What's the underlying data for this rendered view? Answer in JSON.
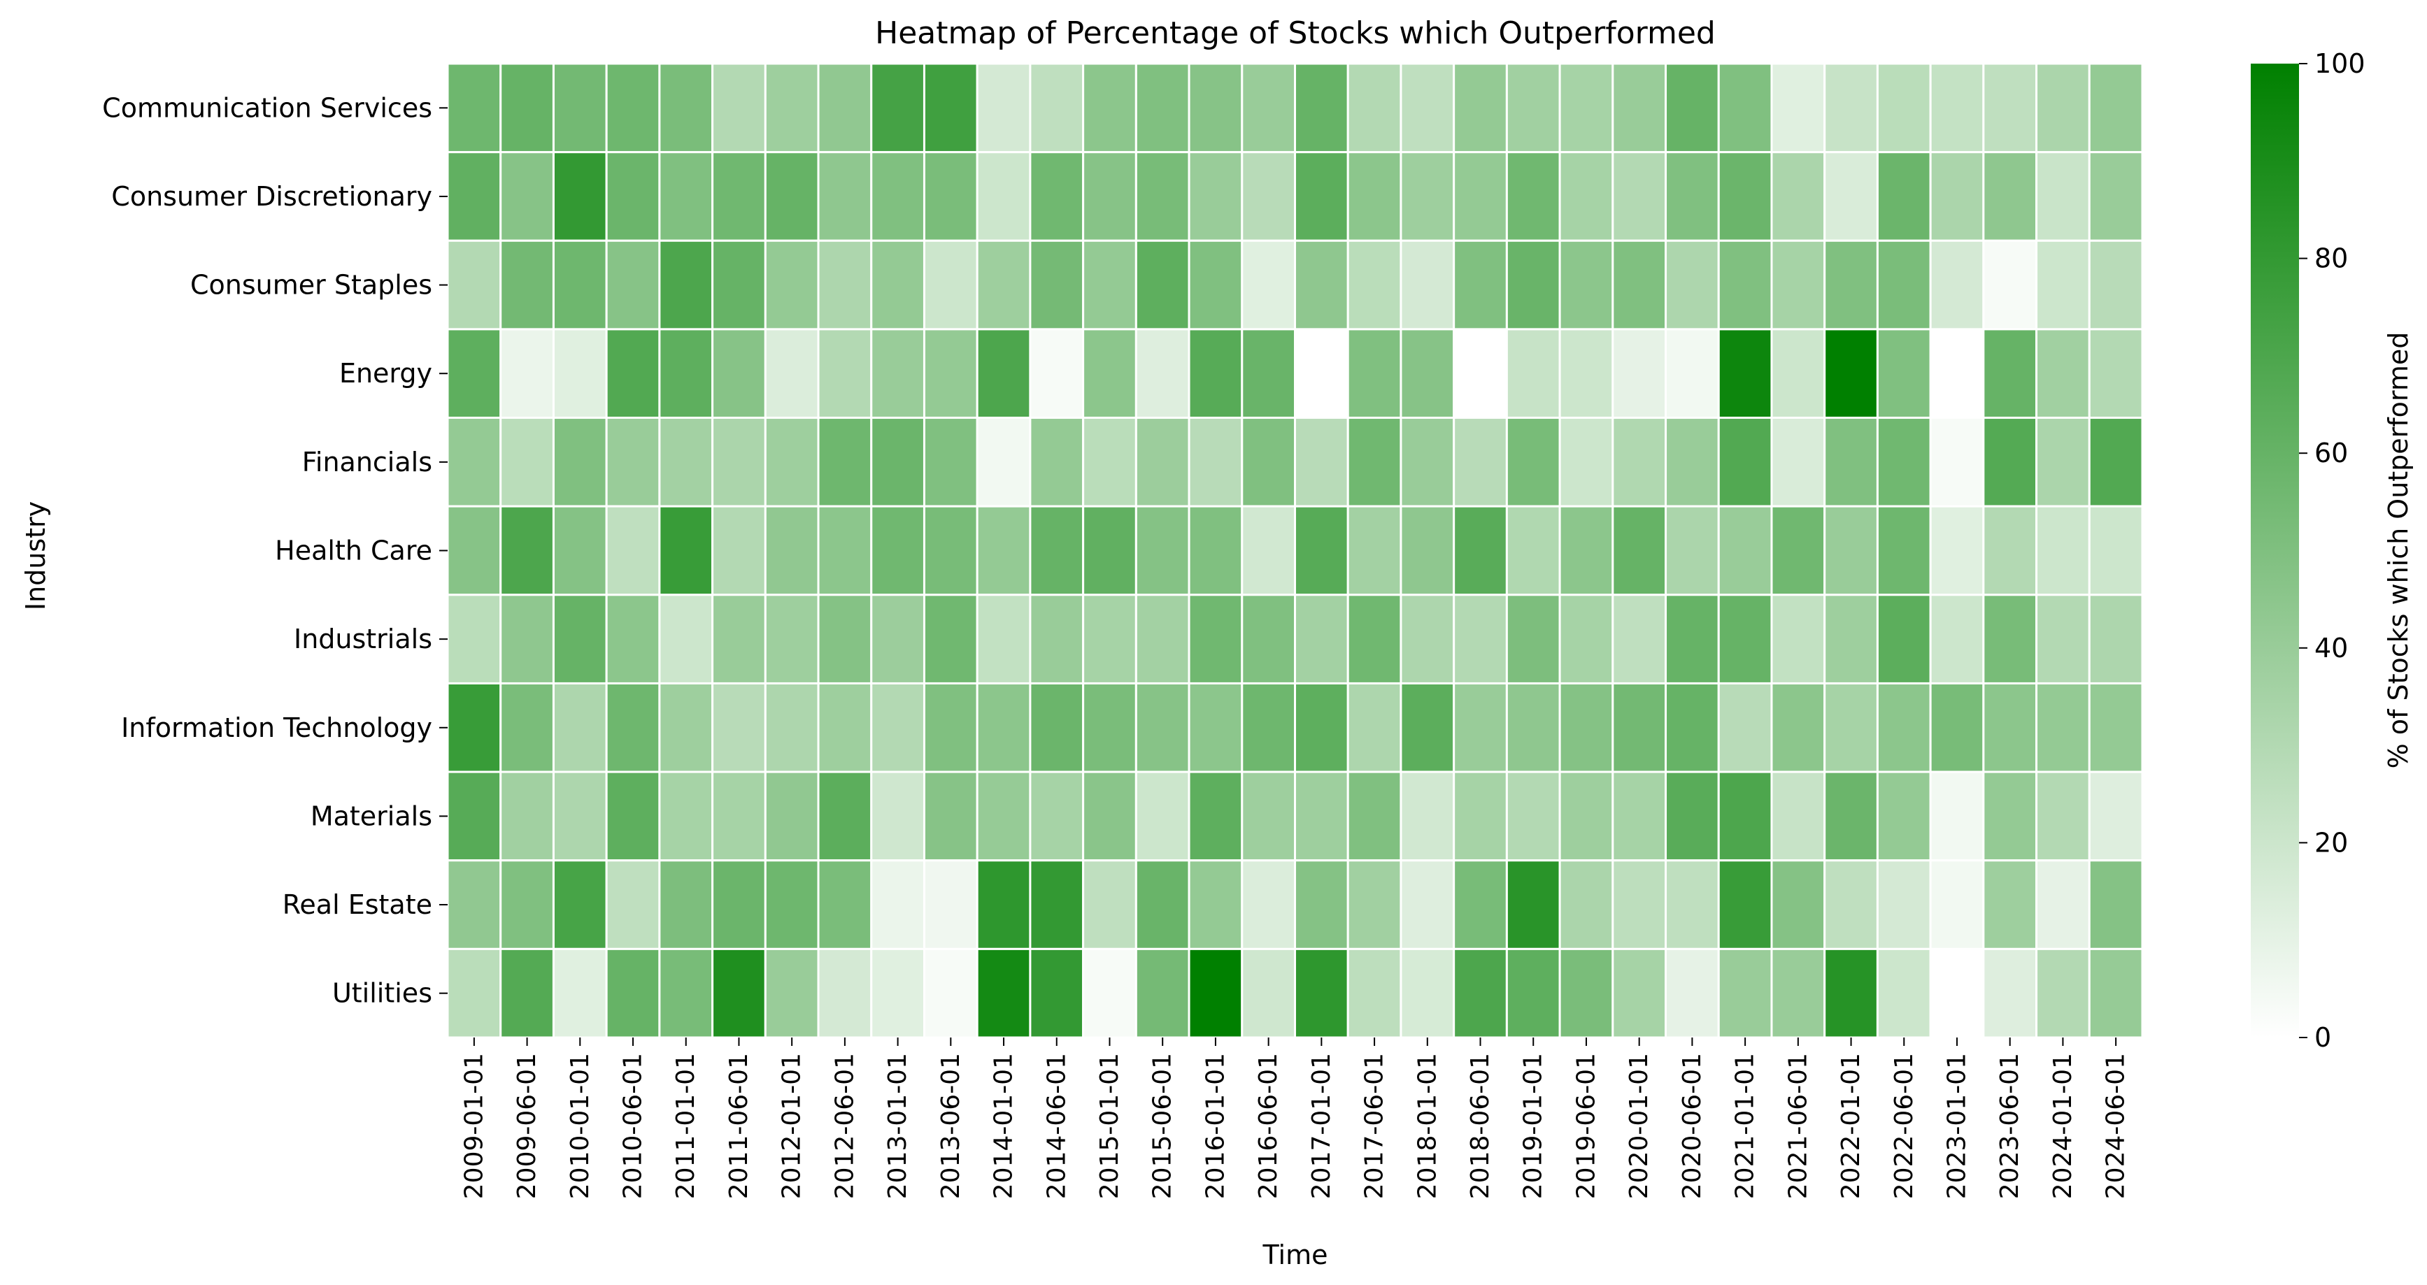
{
  "chart_data": {
    "type": "heatmap",
    "title": "Heatmap of Percentage of Stocks which Outperformed",
    "xlabel": "Time",
    "ylabel": "Industry",
    "x": [
      "2009-01-01",
      "2009-06-01",
      "2010-01-01",
      "2010-06-01",
      "2011-01-01",
      "2011-06-01",
      "2012-01-01",
      "2012-06-01",
      "2013-01-01",
      "2013-06-01",
      "2014-01-01",
      "2014-06-01",
      "2015-01-01",
      "2015-06-01",
      "2016-01-01",
      "2016-06-01",
      "2017-01-01",
      "2017-06-01",
      "2018-01-01",
      "2018-06-01",
      "2019-01-01",
      "2019-06-01",
      "2020-01-01",
      "2020-06-01",
      "2021-01-01",
      "2021-06-01",
      "2022-01-01",
      "2022-06-01",
      "2023-01-01",
      "2023-06-01",
      "2024-01-01",
      "2024-06-01"
    ],
    "y": [
      "Communication Services",
      "Consumer Discretionary",
      "Consumer Staples",
      "Energy",
      "Financials",
      "Health Care",
      "Industrials",
      "Information Technology",
      "Materials",
      "Real Estate",
      "Utilities"
    ],
    "values": [
      [
        57,
        60,
        55,
        57,
        52,
        30,
        38,
        43,
        73,
        75,
        17,
        25,
        45,
        50,
        47,
        40,
        60,
        30,
        25,
        42,
        37,
        35,
        40,
        60,
        50,
        12,
        22,
        27,
        23,
        25,
        33,
        42
      ],
      [
        62,
        47,
        80,
        58,
        50,
        56,
        60,
        44,
        50,
        52,
        20,
        56,
        47,
        53,
        40,
        28,
        64,
        45,
        38,
        42,
        56,
        35,
        30,
        50,
        58,
        33,
        15,
        58,
        33,
        44,
        21,
        40
      ],
      [
        30,
        55,
        57,
        47,
        70,
        60,
        42,
        32,
        42,
        20,
        38,
        54,
        42,
        63,
        50,
        12,
        44,
        27,
        17,
        50,
        59,
        45,
        50,
        32,
        50,
        35,
        50,
        52,
        17,
        3,
        20,
        28
      ],
      [
        63,
        8,
        12,
        68,
        63,
        47,
        14,
        30,
        40,
        42,
        70,
        3,
        45,
        13,
        66,
        59,
        0,
        50,
        47,
        0,
        22,
        20,
        10,
        5,
        95,
        20,
        100,
        50,
        0,
        60,
        37,
        30
      ],
      [
        42,
        27,
        50,
        40,
        36,
        33,
        38,
        57,
        58,
        50,
        5,
        42,
        27,
        39,
        28,
        50,
        28,
        56,
        40,
        28,
        53,
        20,
        31,
        40,
        68,
        15,
        50,
        56,
        3,
        67,
        33,
        68
      ],
      [
        47,
        70,
        48,
        25,
        78,
        30,
        43,
        45,
        56,
        53,
        42,
        60,
        62,
        48,
        50,
        18,
        66,
        36,
        44,
        65,
        31,
        45,
        60,
        33,
        40,
        56,
        40,
        57,
        12,
        30,
        20,
        20
      ],
      [
        27,
        44,
        60,
        45,
        20,
        40,
        38,
        48,
        39,
        56,
        24,
        40,
        35,
        36,
        56,
        50,
        36,
        56,
        32,
        30,
        51,
        35,
        25,
        60,
        60,
        24,
        38,
        64,
        20,
        53,
        30,
        32
      ],
      [
        78,
        52,
        32,
        57,
        38,
        28,
        32,
        38,
        30,
        50,
        45,
        58,
        52,
        47,
        45,
        57,
        63,
        32,
        64,
        40,
        44,
        48,
        55,
        60,
        28,
        45,
        35,
        45,
        53,
        45,
        42,
        42
      ],
      [
        66,
        37,
        32,
        63,
        35,
        35,
        43,
        64,
        19,
        47,
        41,
        35,
        46,
        20,
        63,
        38,
        38,
        50,
        18,
        35,
        30,
        38,
        35,
        65,
        70,
        22,
        58,
        42,
        5,
        42,
        30,
        13
      ],
      [
        43,
        50,
        72,
        25,
        51,
        58,
        57,
        52,
        8,
        6,
        82,
        80,
        25,
        59,
        42,
        14,
        48,
        37,
        13,
        53,
        84,
        33,
        26,
        25,
        78,
        48,
        25,
        17,
        5,
        38,
        10,
        48
      ],
      [
        27,
        67,
        12,
        60,
        53,
        88,
        40,
        17,
        12,
        3,
        92,
        80,
        3,
        54,
        100,
        19,
        82,
        26,
        16,
        70,
        63,
        52,
        35,
        10,
        40,
        40,
        85,
        20,
        0,
        13,
        30,
        41
      ]
    ],
    "colorbar": {
      "label": "% of Stocks which Outperformed",
      "ticks": [
        "0",
        "20",
        "40",
        "60",
        "80",
        "100"
      ],
      "range": [
        0,
        100
      ],
      "color_low": "#ffffff",
      "color_high": "#008000"
    },
    "grid": false,
    "cell_border_color": "#ffffff"
  }
}
